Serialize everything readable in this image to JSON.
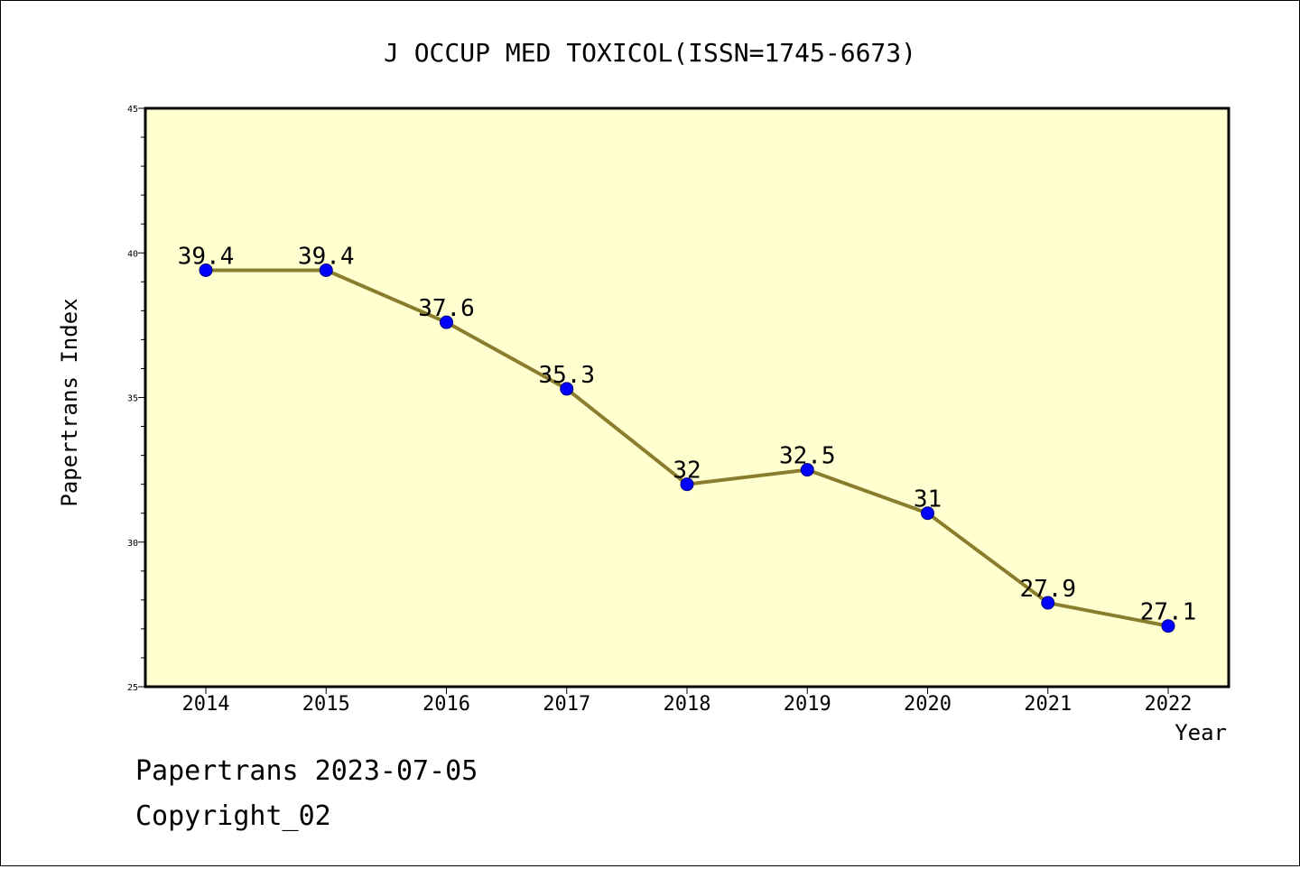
{
  "chart_data": {
    "type": "line",
    "title": "J OCCUP MED TOXICOL(ISSN=1745-6673)",
    "xlabel": "Year",
    "ylabel": "Papertrans Index",
    "categories": [
      "2014",
      "2015",
      "2016",
      "2017",
      "2018",
      "2019",
      "2020",
      "2021",
      "2022"
    ],
    "values": [
      39.4,
      39.4,
      37.6,
      35.3,
      32,
      32.5,
      31,
      27.9,
      27.1
    ],
    "value_labels": [
      "39.4",
      "39.4",
      "37.6",
      "35.3",
      "32",
      "32.5",
      "31",
      "27.9",
      "27.1"
    ],
    "ylim": [
      25,
      45
    ],
    "y_ticks": [
      "25",
      "30",
      "35",
      "40",
      "45"
    ],
    "grid": false,
    "colors": {
      "plot_background": "#ffffd0",
      "line": "#8b7d2e",
      "marker": "#0000ff"
    }
  },
  "footer": {
    "line1": "Papertrans 2023-07-05",
    "line2": "Copyright_02"
  }
}
